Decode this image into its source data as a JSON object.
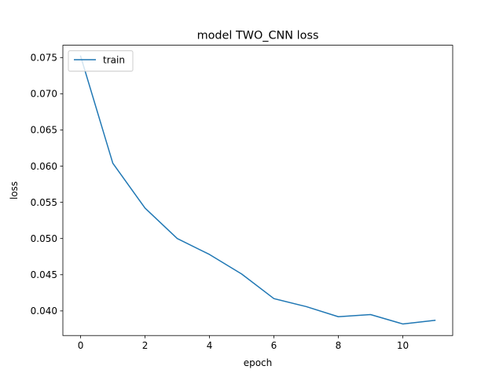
{
  "chart_data": {
    "type": "line",
    "title": "model TWO_CNN loss",
    "xlabel": "epoch",
    "ylabel": "loss",
    "xlim": [
      -0.55,
      11.55
    ],
    "ylim": [
      0.0366,
      0.0767
    ],
    "xticks": [
      0,
      2,
      4,
      6,
      8,
      10
    ],
    "xtick_labels": [
      "0",
      "2",
      "4",
      "6",
      "8",
      "10"
    ],
    "yticks": [
      0.04,
      0.045,
      0.05,
      0.055,
      0.06,
      0.065,
      0.07,
      0.075
    ],
    "ytick_labels": [
      "0.040",
      "0.045",
      "0.050",
      "0.055",
      "0.060",
      "0.065",
      "0.070",
      "0.075"
    ],
    "grid": false,
    "legend_position": "upper left",
    "x": [
      0,
      1,
      2,
      3,
      4,
      5,
      6,
      7,
      8,
      9,
      10,
      11
    ],
    "series": [
      {
        "name": "train",
        "color": "#1f77b4",
        "values": [
          0.0752,
          0.0604,
          0.0542,
          0.05,
          0.0478,
          0.0451,
          0.0417,
          0.0406,
          0.0392,
          0.0395,
          0.0382,
          0.0387
        ]
      }
    ]
  }
}
